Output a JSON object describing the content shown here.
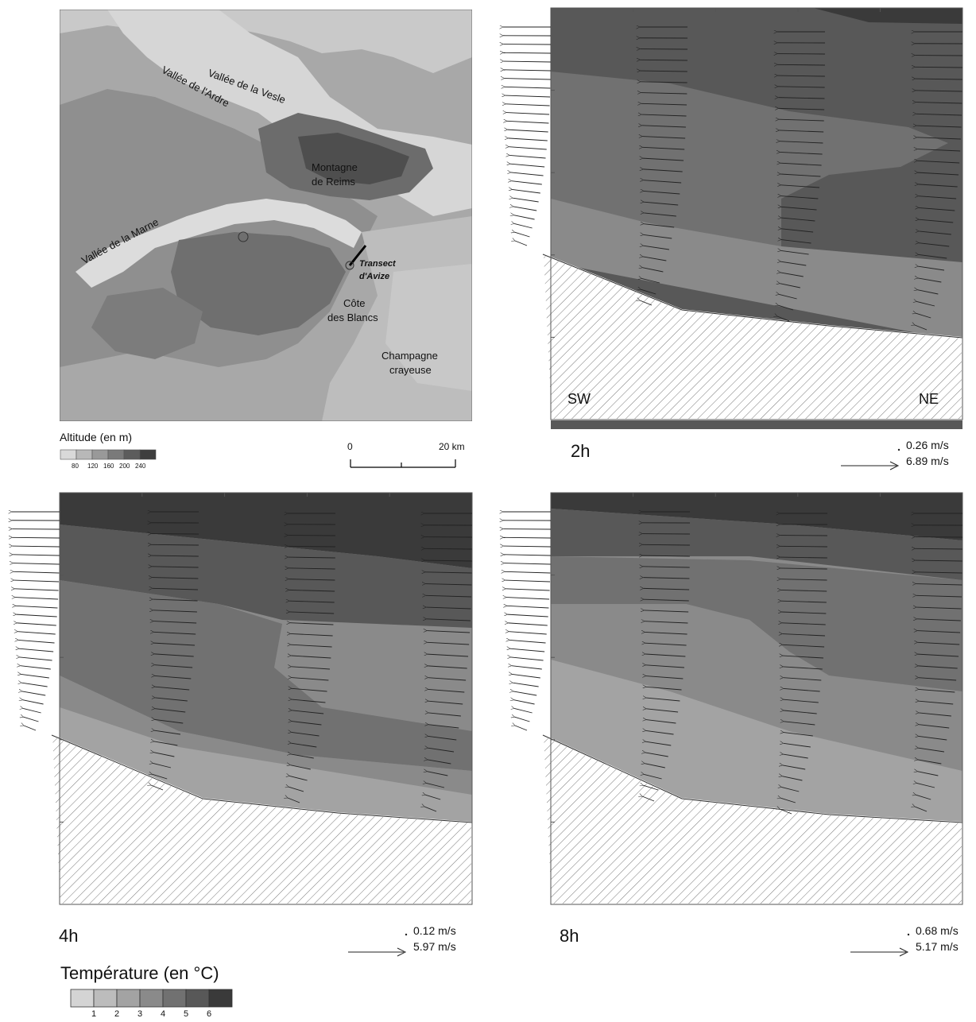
{
  "map": {
    "labels": {
      "vesle": "Vallée de la Vesle",
      "ardre": "Vallée de l'Ardre",
      "marne": "Vallée de la Marne",
      "montagne_1": "Montagne",
      "montagne_2": "de Reims",
      "transect_1": "Transect",
      "transect_2": "d'Avize",
      "cote_1": "Côte",
      "cote_2": "des Blancs",
      "champagne_1": "Champagne",
      "champagne_2": "crayeuse"
    },
    "altitude_legend": {
      "title": "Altitude (en m)",
      "ticks": [
        "80",
        "120",
        "160",
        "200",
        "240"
      ],
      "colors": [
        "#d9d9d9",
        "#b8b8b8",
        "#999999",
        "#7a7a7a",
        "#5c5c5c",
        "#3e3e3e"
      ]
    },
    "scale_bar": {
      "start": "0",
      "end": "20 km"
    }
  },
  "panels": [
    {
      "time": "2h",
      "ref_min": "0.26 m/s",
      "ref_max": "6.89 m/s",
      "left_label": "SW",
      "right_label": "NE"
    },
    {
      "time": "4h",
      "ref_min": "0.12 m/s",
      "ref_max": "5.97 m/s"
    },
    {
      "time": "8h",
      "ref_min": "0.68 m/s",
      "ref_max": "5.17 m/s"
    }
  ],
  "temperature_legend": {
    "title": "Température (en °C)",
    "ticks": [
      "1",
      "2",
      "3",
      "4",
      "5",
      "6"
    ],
    "colors": [
      "#d4d4d4",
      "#bcbcbc",
      "#a3a3a3",
      "#8a8a8a",
      "#717171",
      "#585858",
      "#3a3a3a"
    ]
  }
}
